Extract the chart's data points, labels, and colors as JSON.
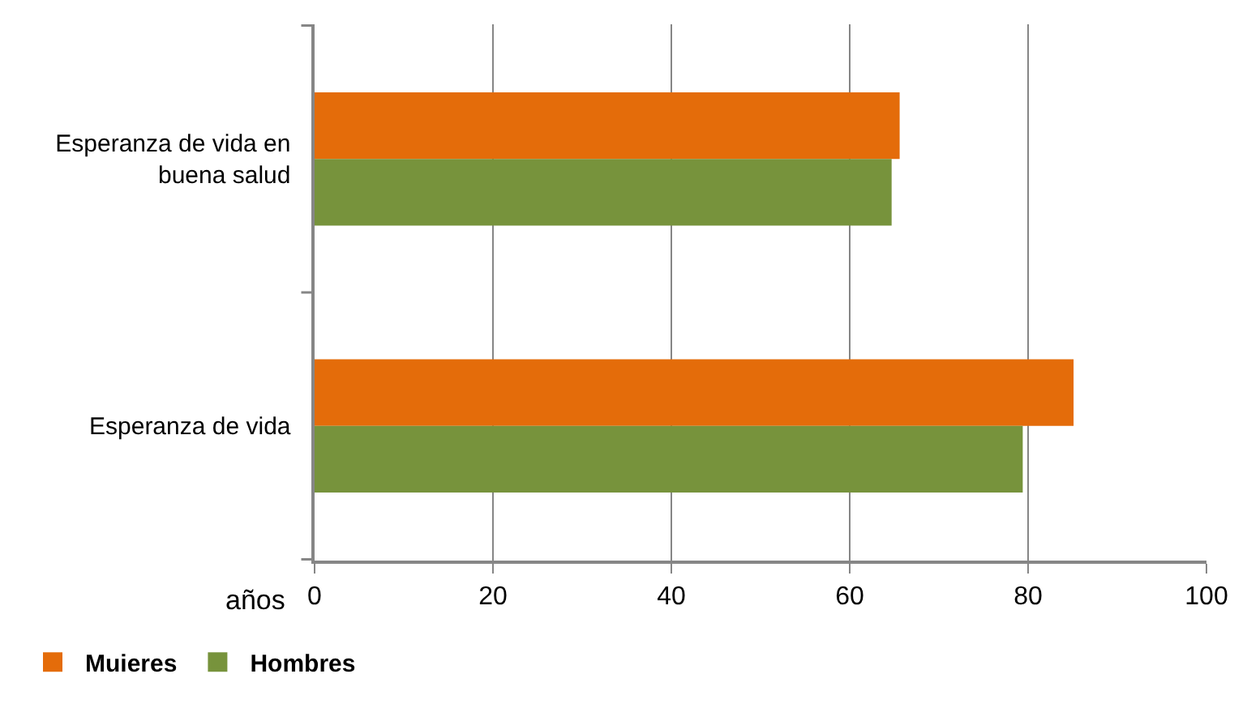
{
  "chart_data": {
    "type": "bar",
    "orientation": "horizontal",
    "xlabel": "años",
    "categories": [
      "Esperanza de vida en buena salud",
      "Esperanza de vida"
    ],
    "series": [
      {
        "name": "Muieres",
        "color": "#e46c0a",
        "values": [
          65.6,
          85.1
        ]
      },
      {
        "name": "Hombres",
        "color": "#77933c",
        "values": [
          64.7,
          79.4
        ]
      }
    ],
    "xlim": [
      0,
      100
    ],
    "xticks": [
      0,
      20,
      40,
      60,
      80,
      100
    ],
    "grid": "x",
    "legend": "bottom left"
  }
}
